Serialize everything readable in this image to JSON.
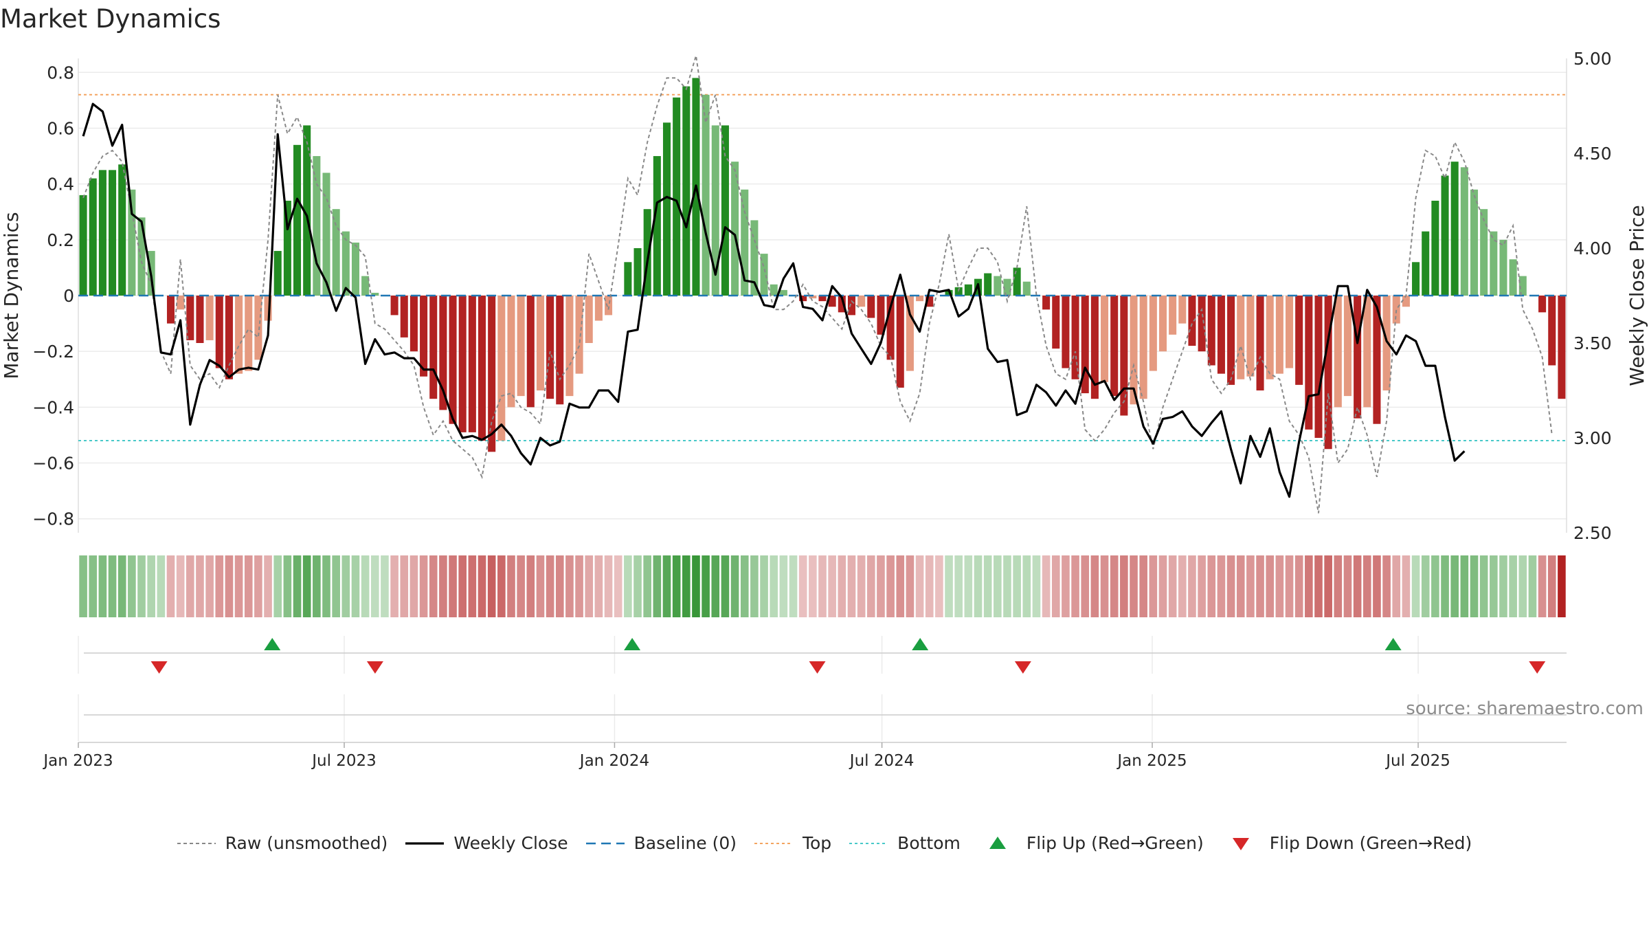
{
  "title": "Market Dynamics",
  "source": "source: sharemaestro.com",
  "chart_data": {
    "type": "bar",
    "title": "Market Dynamics",
    "ylabel_left": "Market Dynamics",
    "ylabel_right": "Weekly Close Price",
    "ylim_left": [
      -0.85,
      0.85
    ],
    "ylim_right": [
      2.5,
      5.0
    ],
    "yticks_left": [
      0.8,
      0.6,
      0.4,
      0.2,
      0,
      -0.2,
      -0.4,
      -0.6,
      -0.8
    ],
    "yticks_left_labels": [
      "0.8",
      "0.6",
      "0.4",
      "0.2",
      "0",
      "−0.2",
      "−0.4",
      "−0.6",
      "−0.8"
    ],
    "yticks_right": [
      5.0,
      4.5,
      4.0,
      3.5,
      3.0,
      2.5
    ],
    "yticks_right_labels": [
      "5.00",
      "4.50",
      "4.00",
      "3.50",
      "3.00",
      "2.50"
    ],
    "x_start": "2023-01-01",
    "x_end": "2025-10-10",
    "xticks": [
      {
        "date": "2023-01-01",
        "label": "Jan 2023"
      },
      {
        "date": "2023-07-01",
        "label": "Jul 2023"
      },
      {
        "date": "2024-01-01",
        "label": "Jan 2024"
      },
      {
        "date": "2024-07-01",
        "label": "Jul 2024"
      },
      {
        "date": "2025-01-01",
        "label": "Jan 2025"
      },
      {
        "date": "2025-07-01",
        "label": "Jul 2025"
      }
    ],
    "top_level": 0.72,
    "bottom_level": -0.52,
    "baseline": 0,
    "grid": true,
    "legend_position": "bottom",
    "smoothed": [
      0.36,
      0.42,
      0.45,
      0.45,
      0.47,
      0.38,
      0.28,
      0.16,
      0.0,
      -0.1,
      -0.05,
      -0.16,
      -0.17,
      -0.16,
      -0.26,
      -0.3,
      -0.28,
      -0.27,
      -0.23,
      -0.09,
      0.16,
      0.34,
      0.54,
      0.61,
      0.5,
      0.44,
      0.31,
      0.23,
      0.19,
      0.07,
      0.01,
      0.0,
      -0.07,
      -0.15,
      -0.2,
      -0.29,
      -0.37,
      -0.41,
      -0.46,
      -0.49,
      -0.49,
      -0.52,
      -0.56,
      -0.52,
      -0.4,
      -0.36,
      -0.4,
      -0.34,
      -0.37,
      -0.39,
      -0.36,
      -0.28,
      -0.17,
      -0.09,
      -0.07,
      0.0,
      0.12,
      0.17,
      0.31,
      0.5,
      0.62,
      0.71,
      0.75,
      0.78,
      0.72,
      0.61,
      0.61,
      0.48,
      0.38,
      0.27,
      0.15,
      0.04,
      0.02,
      0.0,
      -0.02,
      -0.01,
      -0.02,
      -0.04,
      -0.06,
      -0.07,
      -0.04,
      -0.08,
      -0.14,
      -0.23,
      -0.33,
      -0.27,
      -0.02,
      -0.04,
      0.0,
      0.02,
      0.03,
      0.04,
      0.06,
      0.08,
      0.07,
      0.06,
      0.1,
      0.05,
      0.0,
      -0.05,
      -0.19,
      -0.26,
      -0.3,
      -0.35,
      -0.37,
      -0.31,
      -0.36,
      -0.43,
      -0.39,
      -0.37,
      -0.27,
      -0.2,
      -0.14,
      -0.1,
      -0.18,
      -0.2,
      -0.25,
      -0.28,
      -0.32,
      -0.3,
      -0.29,
      -0.34,
      -0.3,
      -0.28,
      -0.26,
      -0.32,
      -0.48,
      -0.51,
      -0.55,
      -0.4,
      -0.36,
      -0.44,
      -0.4,
      -0.46,
      -0.34,
      -0.1,
      -0.04,
      0.12,
      0.23,
      0.34,
      0.43,
      0.48,
      0.46,
      0.38,
      0.31,
      0.23,
      0.2,
      0.13,
      0.07,
      0.0,
      -0.06,
      -0.25,
      -0.37
    ],
    "raw": [
      0.35,
      0.44,
      0.5,
      0.52,
      0.48,
      0.3,
      0.12,
      0.04,
      -0.2,
      -0.28,
      0.13,
      -0.25,
      -0.3,
      -0.28,
      -0.33,
      -0.25,
      -0.18,
      -0.12,
      -0.15,
      0.2,
      0.72,
      0.58,
      0.64,
      0.55,
      0.4,
      0.35,
      0.25,
      0.2,
      0.18,
      0.14,
      -0.1,
      -0.12,
      -0.16,
      -0.2,
      -0.25,
      -0.4,
      -0.5,
      -0.45,
      -0.52,
      -0.55,
      -0.58,
      -0.65,
      -0.45,
      -0.36,
      -0.35,
      -0.4,
      -0.42,
      -0.46,
      -0.2,
      -0.3,
      -0.25,
      -0.18,
      0.15,
      0.05,
      -0.05,
      0.18,
      0.42,
      0.36,
      0.55,
      0.68,
      0.78,
      0.78,
      0.74,
      0.86,
      0.62,
      0.72,
      0.5,
      0.45,
      0.3,
      0.2,
      0.1,
      -0.05,
      -0.05,
      -0.02,
      0.04,
      -0.02,
      -0.04,
      -0.08,
      -0.12,
      -0.02,
      -0.05,
      -0.1,
      -0.18,
      -0.22,
      -0.38,
      -0.45,
      -0.35,
      -0.1,
      0.04,
      0.22,
      0.02,
      0.1,
      0.17,
      0.17,
      0.12,
      -0.02,
      0.1,
      0.32,
      0.0,
      -0.18,
      -0.28,
      -0.3,
      -0.2,
      -0.48,
      -0.52,
      -0.48,
      -0.42,
      -0.38,
      -0.25,
      -0.38,
      -0.55,
      -0.4,
      -0.3,
      -0.2,
      -0.1,
      -0.05,
      -0.3,
      -0.35,
      -0.3,
      -0.18,
      -0.3,
      -0.22,
      -0.28,
      -0.3,
      -0.45,
      -0.5,
      -0.58,
      -0.78,
      -0.35,
      -0.6,
      -0.55,
      -0.4,
      -0.5,
      -0.65,
      -0.45,
      -0.05,
      0.0,
      0.35,
      0.52,
      0.5,
      0.42,
      0.55,
      0.48,
      0.36,
      0.27,
      0.2,
      0.18,
      0.25,
      -0.05,
      -0.12,
      -0.22,
      -0.5
    ],
    "weekly_close": [
      4.59,
      4.76,
      4.72,
      4.54,
      4.65,
      4.18,
      4.14,
      3.85,
      3.45,
      3.44,
      3.62,
      3.07,
      3.28,
      3.41,
      3.38,
      3.32,
      3.36,
      3.37,
      3.36,
      3.54,
      4.6,
      4.1,
      4.26,
      4.17,
      3.92,
      3.82,
      3.67,
      3.79,
      3.74,
      3.39,
      3.52,
      3.44,
      3.45,
      3.42,
      3.42,
      3.36,
      3.36,
      3.25,
      3.1,
      3.0,
      3.01,
      2.99,
      3.02,
      3.07,
      3.01,
      2.92,
      2.86,
      3.0,
      2.96,
      2.98,
      3.18,
      3.16,
      3.16,
      3.25,
      3.25,
      3.19,
      3.56,
      3.57,
      3.93,
      4.24,
      4.27,
      4.25,
      4.11,
      4.33,
      4.08,
      3.86,
      4.11,
      4.07,
      3.83,
      3.82,
      3.7,
      3.69,
      3.84,
      3.92,
      3.69,
      3.68,
      3.62,
      3.8,
      3.74,
      3.55,
      3.47,
      3.39,
      3.5,
      3.69,
      3.86,
      3.65,
      3.56,
      3.78,
      3.77,
      3.78,
      3.64,
      3.68,
      3.81,
      3.47,
      3.4,
      3.41,
      3.12,
      3.14,
      3.28,
      3.24,
      3.17,
      3.25,
      3.18,
      3.37,
      3.28,
      3.3,
      3.2,
      3.26,
      3.26,
      3.06,
      2.97,
      3.1,
      3.11,
      3.14,
      3.06,
      3.01,
      3.08,
      3.14,
      2.94,
      2.76,
      3.01,
      2.9,
      3.05,
      2.82,
      2.69,
      2.98,
      3.22,
      3.23,
      3.52,
      3.8,
      3.8,
      3.5,
      3.78,
      3.69,
      3.51,
      3.44,
      3.54,
      3.51,
      3.38,
      3.38,
      3.11,
      2.88,
      2.93
    ],
    "intensity_strip": [
      0.5,
      0.5,
      0.55,
      0.55,
      0.6,
      0.45,
      0.35,
      0.25,
      0.2,
      0.25,
      0.2,
      0.3,
      0.3,
      0.3,
      0.4,
      0.45,
      0.4,
      0.4,
      0.35,
      0.25,
      0.3,
      0.5,
      0.7,
      0.8,
      0.65,
      0.55,
      0.45,
      0.35,
      0.3,
      0.2,
      0.15,
      0.15,
      0.25,
      0.3,
      0.3,
      0.4,
      0.5,
      0.55,
      0.6,
      0.65,
      0.65,
      0.7,
      0.75,
      0.7,
      0.55,
      0.5,
      0.55,
      0.45,
      0.5,
      0.5,
      0.45,
      0.4,
      0.3,
      0.25,
      0.2,
      0.15,
      0.2,
      0.3,
      0.45,
      0.65,
      0.8,
      0.9,
      0.95,
      1.0,
      0.9,
      0.8,
      0.8,
      0.65,
      0.5,
      0.4,
      0.3,
      0.2,
      0.15,
      0.15,
      0.15,
      0.15,
      0.2,
      0.2,
      0.25,
      0.25,
      0.25,
      0.3,
      0.35,
      0.4,
      0.45,
      0.4,
      0.2,
      0.2,
      0.15,
      0.15,
      0.15,
      0.15,
      0.2,
      0.2,
      0.2,
      0.2,
      0.2,
      0.2,
      0.15,
      0.2,
      0.3,
      0.35,
      0.4,
      0.45,
      0.5,
      0.45,
      0.5,
      0.55,
      0.5,
      0.5,
      0.4,
      0.35,
      0.3,
      0.25,
      0.3,
      0.35,
      0.4,
      0.4,
      0.45,
      0.45,
      0.4,
      0.45,
      0.45,
      0.4,
      0.4,
      0.45,
      0.6,
      0.65,
      0.7,
      0.55,
      0.5,
      0.6,
      0.55,
      0.6,
      0.5,
      0.3,
      0.25,
      0.2,
      0.35,
      0.45,
      0.55,
      0.6,
      0.6,
      0.55,
      0.45,
      0.4,
      0.35,
      0.3,
      0.25,
      0.35,
      0.45,
      0.55
    ],
    "flips": [
      {
        "date": "2023-02-25",
        "direction": "down"
      },
      {
        "date": "2023-05-13",
        "direction": "up"
      },
      {
        "date": "2023-07-22",
        "direction": "down"
      },
      {
        "date": "2024-01-13",
        "direction": "up"
      },
      {
        "date": "2024-05-18",
        "direction": "down"
      },
      {
        "date": "2024-07-27",
        "direction": "up"
      },
      {
        "date": "2024-10-05",
        "direction": "down"
      },
      {
        "date": "2025-06-14",
        "direction": "up"
      },
      {
        "date": "2025-09-20",
        "direction": "down"
      }
    ],
    "legend": [
      {
        "label": "Raw (unsmoothed)",
        "symbol": "dashed-gray"
      },
      {
        "label": "Weekly Close",
        "symbol": "solid-black"
      },
      {
        "label": "Baseline (0)",
        "symbol": "dashed-blue"
      },
      {
        "label": "Top",
        "symbol": "dotted-orange"
      },
      {
        "label": "Bottom",
        "symbol": "dotted-teal"
      },
      {
        "label": "Flip Up (Red→Green)",
        "symbol": "triangle-up"
      },
      {
        "label": "Flip Down (Green→Red)",
        "symbol": "triangle-down"
      }
    ]
  },
  "colors": {
    "green_strong": "#228b22",
    "green_light": "#77b977",
    "red_strong": "#b22222",
    "red_light": "#e59a80",
    "top_line": "#f4a460",
    "bottom_line": "#48c9c9",
    "baseline": "#1f77b4",
    "raw_line": "#888888",
    "close_line": "#000000",
    "flip_up": "#1a9e40",
    "flip_down": "#d62728"
  }
}
